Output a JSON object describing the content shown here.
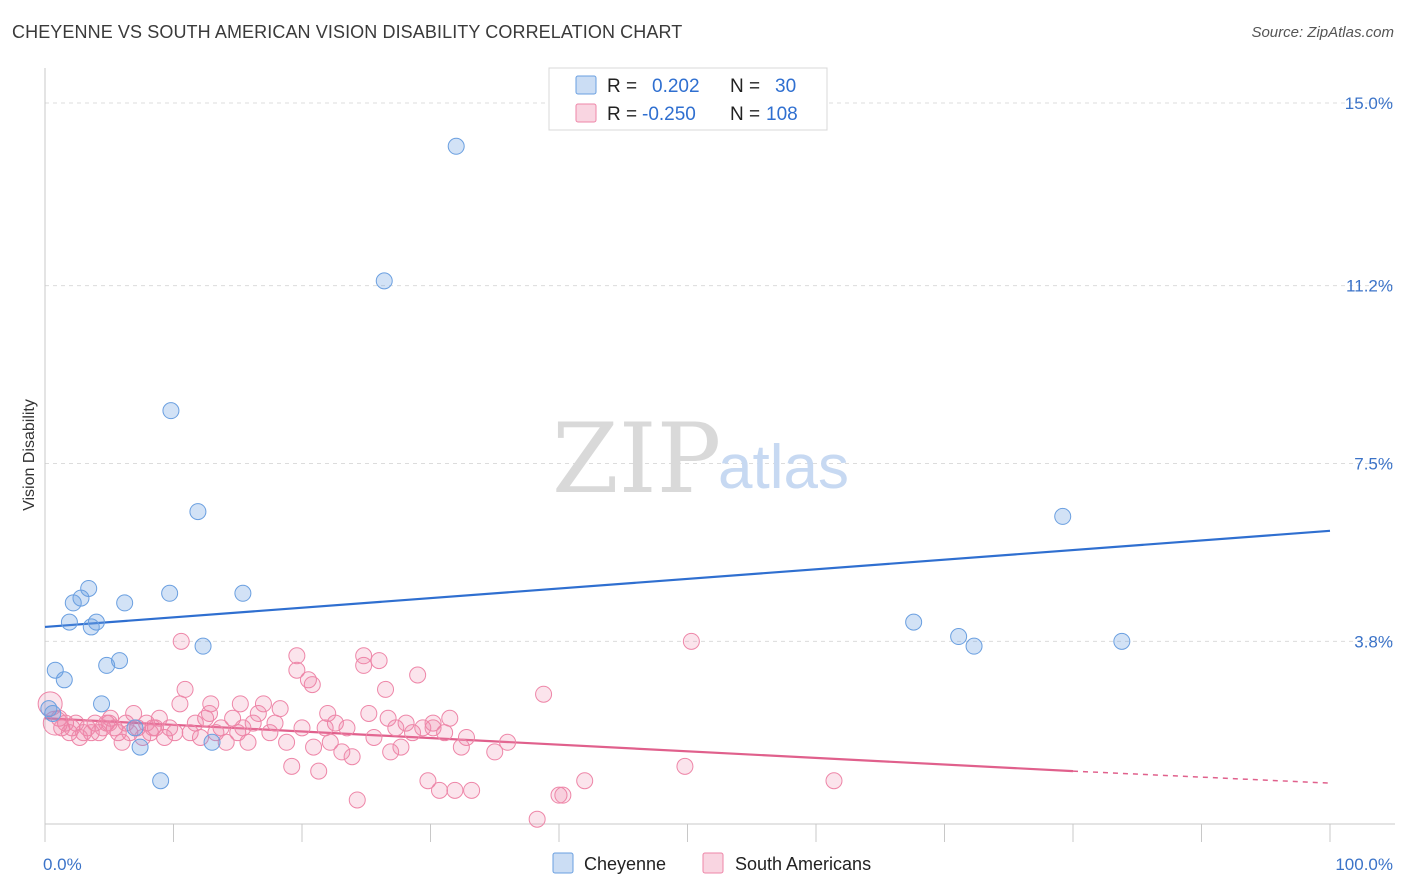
{
  "title": "CHEYENNE VS SOUTH AMERICAN VISION DISABILITY CORRELATION CHART",
  "source": "Source: ZipAtlas.com",
  "watermark": {
    "zip": "ZIP",
    "atlas": "atlas"
  },
  "chart_data": {
    "type": "scatter",
    "ylabel": "Vision Disability",
    "xlabel": "",
    "xlim": [
      0,
      100
    ],
    "ylim": [
      0,
      15.5
    ],
    "x_tick_labels": [
      "0.0%",
      "100.0%"
    ],
    "y_ticks": [
      3.8,
      7.5,
      11.2,
      15.0
    ],
    "y_tick_labels": [
      "3.8%",
      "7.5%",
      "11.2%",
      "15.0%"
    ],
    "legend": {
      "entries": [
        {
          "name": "Cheyenne",
          "r_label": "R =",
          "r_value": "0.202",
          "n_label": "N =",
          "n_value": "30",
          "color": "#6a9fe0"
        },
        {
          "name": "South Americans",
          "r_label": "R =",
          "r_value": "-0.250",
          "n_label": "N =",
          "n_value": "108",
          "color": "#ee86a8"
        }
      ]
    },
    "series": [
      {
        "name": "Cheyenne",
        "color": "#6a9fe0",
        "fill": "rgba(106,159,224,0.30)",
        "trend": {
          "x0": 0,
          "y0": 4.1,
          "x1": 100,
          "y1": 6.1,
          "color": "#2f6fd0"
        },
        "points": [
          [
            0.3,
            2.4
          ],
          [
            0.6,
            2.3
          ],
          [
            0.8,
            3.2
          ],
          [
            1.5,
            3.0
          ],
          [
            1.9,
            4.2
          ],
          [
            2.2,
            4.6
          ],
          [
            2.8,
            4.7
          ],
          [
            3.4,
            4.9
          ],
          [
            3.6,
            4.1
          ],
          [
            4.0,
            4.2
          ],
          [
            4.4,
            2.5
          ],
          [
            4.8,
            3.3
          ],
          [
            5.8,
            3.4
          ],
          [
            6.2,
            4.6
          ],
          [
            7.0,
            2.0
          ],
          [
            7.4,
            1.6
          ],
          [
            9.0,
            0.9
          ],
          [
            9.7,
            4.8
          ],
          [
            9.8,
            8.6
          ],
          [
            11.9,
            6.5
          ],
          [
            12.3,
            3.7
          ],
          [
            13.0,
            1.7
          ],
          [
            15.4,
            4.8
          ],
          [
            26.4,
            11.3
          ],
          [
            32.0,
            14.1
          ],
          [
            67.6,
            4.2
          ],
          [
            71.1,
            3.9
          ],
          [
            72.3,
            3.7
          ],
          [
            79.2,
            6.4
          ],
          [
            83.8,
            3.8
          ]
        ]
      },
      {
        "name": "South Americans",
        "color": "#ee86a8",
        "fill": "rgba(238,134,168,0.22)",
        "trend": {
          "x0": 0,
          "y0": 2.2,
          "x1": 80,
          "y1": 1.1,
          "color": "#e0608c",
          "dash_x0": 80,
          "dash_y0": 1.1,
          "dash_x1": 100,
          "dash_y1": 0.85
        },
        "points": [
          [
            0.4,
            2.5
          ],
          [
            0.8,
            2.1
          ],
          [
            1.1,
            2.2
          ],
          [
            1.3,
            2.0
          ],
          [
            1.6,
            2.1
          ],
          [
            1.9,
            1.9
          ],
          [
            2.1,
            2.0
          ],
          [
            2.4,
            2.1
          ],
          [
            2.7,
            1.8
          ],
          [
            3.0,
            1.9
          ],
          [
            3.3,
            2.0
          ],
          [
            3.6,
            1.9
          ],
          [
            3.9,
            2.1
          ],
          [
            4.2,
            1.9
          ],
          [
            4.5,
            2.0
          ],
          [
            4.8,
            2.1
          ],
          [
            5.1,
            2.2
          ],
          [
            5.4,
            2.0
          ],
          [
            5.7,
            1.9
          ],
          [
            6.0,
            1.7
          ],
          [
            6.3,
            2.1
          ],
          [
            6.6,
            1.9
          ],
          [
            6.9,
            2.3
          ],
          [
            7.2,
            2.0
          ],
          [
            7.6,
            1.8
          ],
          [
            7.9,
            2.1
          ],
          [
            8.2,
            1.9
          ],
          [
            8.6,
            2.0
          ],
          [
            8.9,
            2.2
          ],
          [
            9.3,
            1.8
          ],
          [
            9.7,
            2.0
          ],
          [
            10.1,
            1.9
          ],
          [
            10.5,
            2.5
          ],
          [
            10.9,
            2.8
          ],
          [
            11.3,
            1.9
          ],
          [
            11.7,
            2.1
          ],
          [
            12.1,
            1.8
          ],
          [
            12.5,
            2.2
          ],
          [
            12.9,
            2.5
          ],
          [
            13.3,
            1.9
          ],
          [
            13.7,
            2.0
          ],
          [
            14.1,
            1.7
          ],
          [
            14.6,
            2.2
          ],
          [
            15.0,
            1.9
          ],
          [
            15.4,
            2.0
          ],
          [
            15.8,
            1.7
          ],
          [
            16.2,
            2.1
          ],
          [
            16.6,
            2.3
          ],
          [
            17.0,
            2.5
          ],
          [
            17.5,
            1.9
          ],
          [
            17.9,
            2.1
          ],
          [
            18.3,
            2.4
          ],
          [
            18.8,
            1.7
          ],
          [
            19.2,
            1.2
          ],
          [
            19.6,
            3.2
          ],
          [
            20.0,
            2.0
          ],
          [
            20.5,
            3.0
          ],
          [
            20.9,
            1.6
          ],
          [
            21.3,
            1.1
          ],
          [
            21.8,
            2.0
          ],
          [
            22.2,
            1.7
          ],
          [
            22.6,
            2.1
          ],
          [
            23.1,
            1.5
          ],
          [
            23.5,
            2.0
          ],
          [
            23.9,
            1.4
          ],
          [
            24.3,
            0.5
          ],
          [
            24.8,
            3.3
          ],
          [
            25.2,
            2.3
          ],
          [
            25.6,
            1.8
          ],
          [
            26.0,
            3.4
          ],
          [
            26.5,
            2.8
          ],
          [
            26.9,
            1.5
          ],
          [
            27.3,
            2.0
          ],
          [
            27.7,
            1.6
          ],
          [
            28.1,
            2.1
          ],
          [
            28.6,
            1.9
          ],
          [
            29.0,
            3.1
          ],
          [
            29.4,
            2.0
          ],
          [
            29.8,
            0.9
          ],
          [
            30.2,
            2.1
          ],
          [
            30.7,
            0.7
          ],
          [
            31.1,
            1.9
          ],
          [
            31.5,
            2.2
          ],
          [
            31.9,
            0.7
          ],
          [
            32.4,
            1.6
          ],
          [
            32.8,
            1.8
          ],
          [
            33.2,
            0.7
          ],
          [
            35.0,
            1.5
          ],
          [
            36.0,
            1.7
          ],
          [
            38.3,
            0.1
          ],
          [
            38.8,
            2.7
          ],
          [
            40.0,
            0.6
          ],
          [
            40.3,
            0.6
          ],
          [
            42.0,
            0.9
          ],
          [
            50.3,
            3.8
          ],
          [
            49.8,
            1.2
          ],
          [
            61.4,
            0.9
          ],
          [
            10.6,
            3.8
          ],
          [
            19.6,
            3.5
          ],
          [
            24.8,
            3.5
          ],
          [
            20.8,
            2.9
          ],
          [
            30.2,
            2.0
          ],
          [
            15.2,
            2.5
          ],
          [
            12.8,
            2.3
          ],
          [
            22.0,
            2.3
          ],
          [
            26.7,
            2.2
          ],
          [
            8.4,
            2.0
          ],
          [
            5.0,
            2.1
          ]
        ]
      }
    ]
  },
  "bottom_legend": {
    "items": [
      {
        "label": "Cheyenne"
      },
      {
        "label": "South Americans"
      }
    ]
  }
}
